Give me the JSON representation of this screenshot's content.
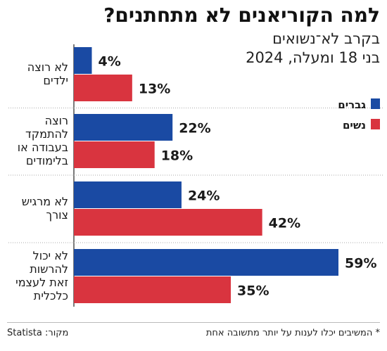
{
  "title": "למה הקוריאנים לא מתחתנים?",
  "subtitle_lines": [
    "בקרב לא־נשואים",
    "בני 18 ומעלה, 2024"
  ],
  "footnote": "* המשיבים יכלו לענות על יותר מתשובה אחת",
  "source": "מקור: Statista",
  "colors": {
    "men": "#1a4aa3",
    "women": "#d9343f",
    "gridline": "#aaaaaa"
  },
  "chart_data": {
    "type": "bar",
    "orientation": "horizontal",
    "categories": [
      [
        "לא רוצה",
        "ילדים"
      ],
      [
        "רוצה",
        "להתמקד",
        "בעבודה או",
        "בלימודים"
      ],
      [
        "לא מרגיש",
        "צורך"
      ],
      [
        "לא יכול",
        "להרשות",
        "זאת לעצמי",
        "כלכלית"
      ]
    ],
    "series": [
      {
        "name": "גברים",
        "values": [
          4,
          22,
          24,
          59
        ],
        "labels": [
          "4%",
          "22%",
          "24%",
          "59%"
        ]
      },
      {
        "name": "נשים",
        "values": [
          13,
          18,
          42,
          35
        ],
        "labels": [
          "13%",
          "18%",
          "42%",
          "35%"
        ]
      }
    ],
    "xlim": [
      0,
      59
    ],
    "legend_position": "right"
  }
}
